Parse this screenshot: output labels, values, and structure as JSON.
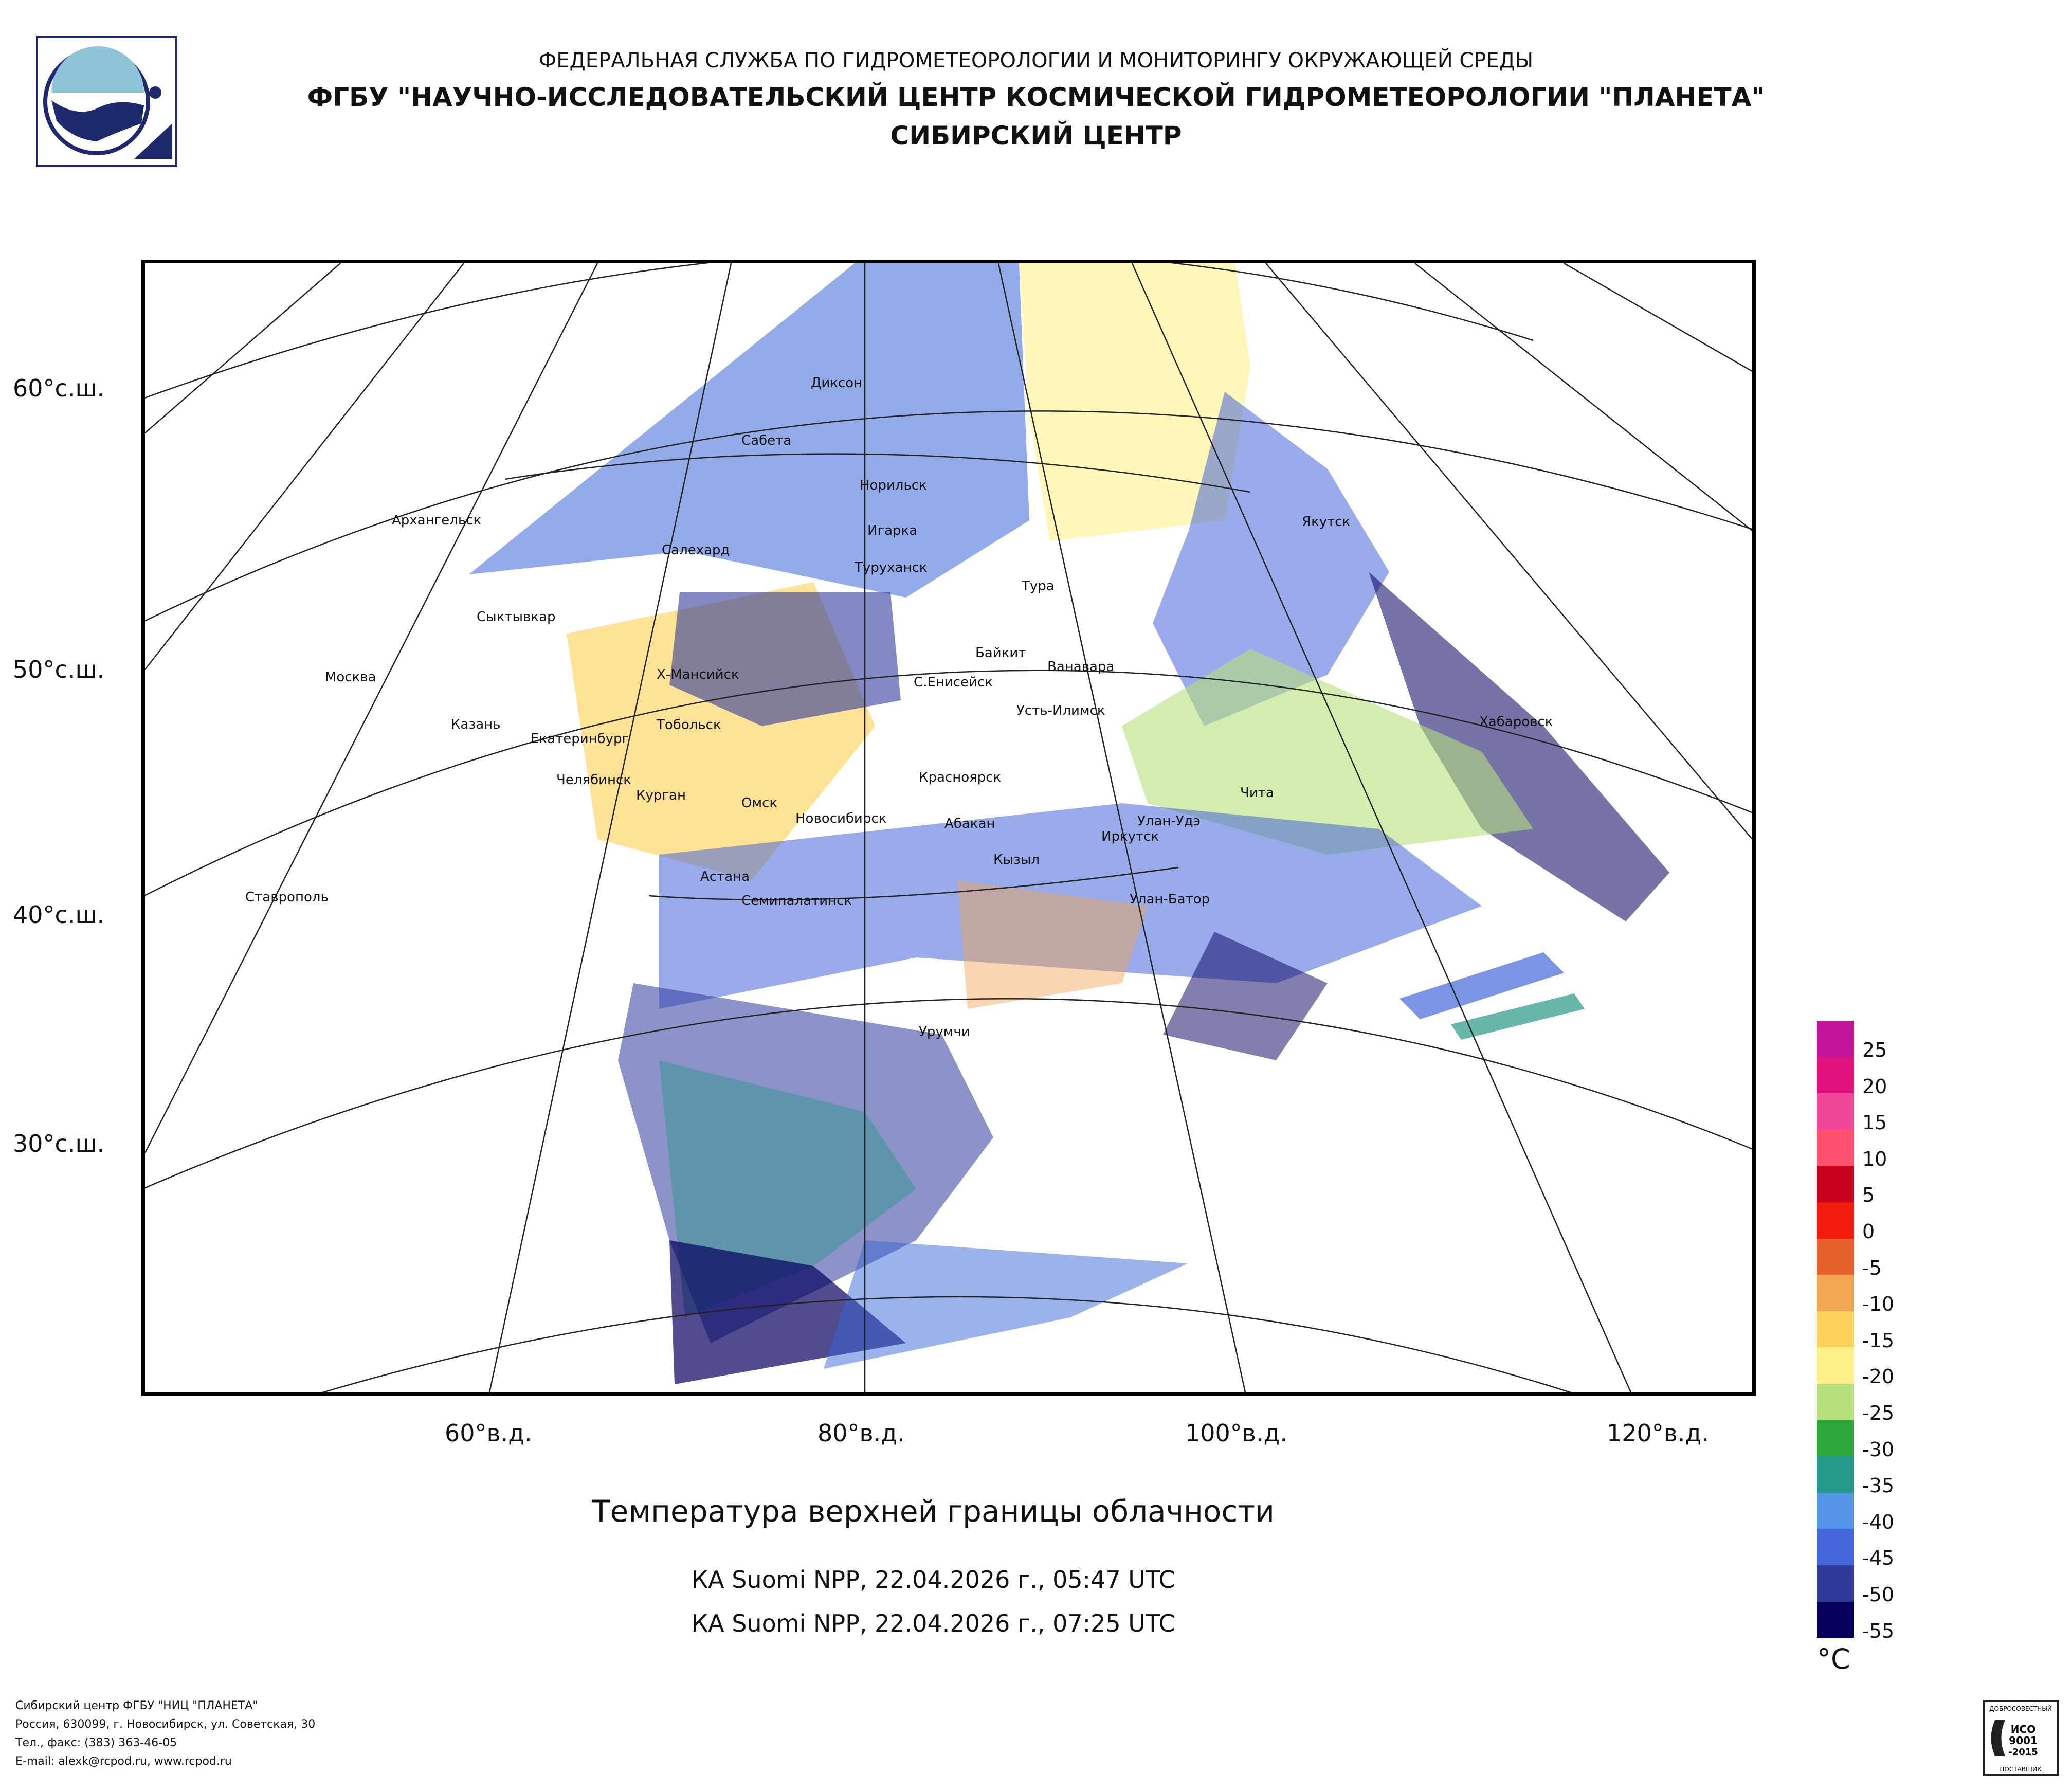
{
  "header": {
    "line1": "ФЕДЕРАЛЬНАЯ СЛУЖБА ПО ГИДРОМЕТЕОРОЛОГИИ И МОНИТОРИНГУ ОКРУЖАЮЩЕЙ СРЕДЫ",
    "line2": "ФГБУ \"НАУЧНО-ИССЛЕДОВАТЕЛЬСКИЙ ЦЕНТР КОСМИЧЕСКОЙ ГИДРОМЕТЕОРОЛОГИИ \"ПЛАНЕТА\"",
    "line3": "СИБИРСКИЙ ЦЕНТР"
  },
  "map": {
    "lat_labels": [
      "60°с.ш.",
      "50°с.ш.",
      "40°с.ш.",
      "30°с.ш."
    ],
    "lon_labels": [
      "60°в.д.",
      "80°в.д.",
      "100°в.д.",
      "120°в.д."
    ],
    "cities": [
      "Диксон",
      "Сабета",
      "Норильск",
      "Игарка",
      "Архангельск",
      "Салехард",
      "Туруханск",
      "Тура",
      "Якутск",
      "Сыктывкар",
      "Байкит",
      "Ванавара",
      "Москва",
      "Х-Мансийск",
      "С.Енисейск",
      "Усть-Илимск",
      "Хабаровск",
      "Казань",
      "Тобольск",
      "Екатеринбург",
      "Красноярск",
      "Чита",
      "Челябинск",
      "Курган",
      "Омск",
      "Новосибирск",
      "Абакан",
      "Улан-Удэ",
      "Иркутск",
      "Кызыл",
      "Астана",
      "Ставрополь",
      "Семипалатинск",
      "Улан-Батор",
      "Урумчи"
    ]
  },
  "title": "Температура верхней границы облачности",
  "passes": [
    "КА Suomi NPP, 22.04.2026 г., 05:47 UTC",
    "КА Suomi NPP, 22.04.2026 г., 07:25 UTC"
  ],
  "legend": {
    "unit": "°C",
    "ticks": [
      "25",
      "20",
      "15",
      "10",
      "5",
      "0",
      "-5",
      "-10",
      "-15",
      "-20",
      "-25",
      "-30",
      "-35",
      "-40",
      "-45",
      "-50",
      "-55"
    ],
    "colors": [
      "#c2139a",
      "#e0127f",
      "#f0479a",
      "#ff5070",
      "#c8001c",
      "#f21a0c",
      "#e8612c",
      "#f2a552",
      "#fdd25c",
      "#fff08a",
      "#b6e07c",
      "#2ea83c",
      "#27998a",
      "#5595e8",
      "#4566d8",
      "#2e3b9b",
      "#05005e"
    ]
  },
  "footer": {
    "line1": "Сибирский центр ФГБУ \"НИЦ \"ПЛАНЕТА\"",
    "line2": "Россия, 630099, г. Новосибирск, ул. Советская, 30",
    "line3": "Тел., факс: (383) 363-46-05",
    "line4": "E-mail: alexk@rcpod.ru, www.rcpod.ru"
  },
  "iso_badge": {
    "top": "ДОБРОСОВЕСТНЫЙ",
    "line1": "ИСО",
    "line2": "9001",
    "line3": "-2015",
    "bottom": "ПОСТАВЩИК"
  }
}
